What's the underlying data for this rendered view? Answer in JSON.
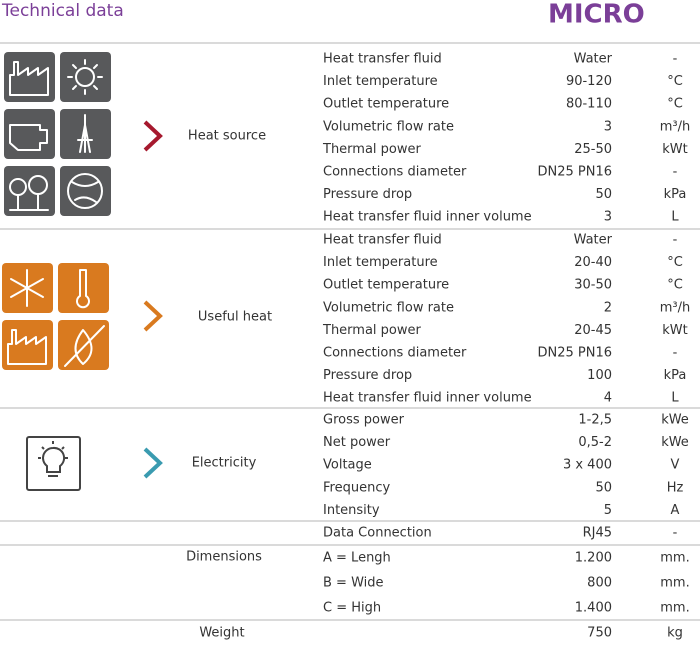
{
  "header": {
    "title": "Technical data",
    "model": "MICRO"
  },
  "sections": [
    {
      "label": "Heat source",
      "rows": [
        {
          "parameter": "Heat transfer fluid",
          "value": "Water",
          "unit": "-"
        },
        {
          "parameter": "Inlet temperature",
          "value": "90-120",
          "unit": "°C"
        },
        {
          "parameter": "Outlet temperature",
          "value": "80-110",
          "unit": "°C"
        },
        {
          "parameter": "Volumetric flow rate",
          "value": "3",
          "unit": "m³/h"
        },
        {
          "parameter": "Thermal power",
          "value": "25-50",
          "unit": "kWt"
        },
        {
          "parameter": "Connections diameter",
          "value": "DN25 PN16",
          "unit": "-"
        },
        {
          "parameter": "Pressure drop",
          "value": "50",
          "unit": "kPa"
        },
        {
          "parameter": "Heat transfer fluid inner volume",
          "value": "3",
          "unit": "L"
        }
      ]
    },
    {
      "label": "Useful heat",
      "rows": [
        {
          "parameter": "Heat transfer fluid",
          "value": "Water",
          "unit": "-"
        },
        {
          "parameter": "Inlet temperature",
          "value": "20-40",
          "unit": "°C"
        },
        {
          "parameter": "Outlet temperature",
          "value": "30-50",
          "unit": "°C"
        },
        {
          "parameter": "Volumetric flow rate",
          "value": "2",
          "unit": "m³/h"
        },
        {
          "parameter": "Thermal power",
          "value": "20-45",
          "unit": "kWt"
        },
        {
          "parameter": "Connections diameter",
          "value": "DN25 PN16",
          "unit": "-"
        },
        {
          "parameter": "Pressure drop",
          "value": "100",
          "unit": "kPa"
        },
        {
          "parameter": "Heat transfer fluid inner volume",
          "value": "4",
          "unit": "L"
        }
      ]
    },
    {
      "label": "Electricity",
      "rows": [
        {
          "parameter": "Gross power",
          "value": "1-2,5",
          "unit": "kWe"
        },
        {
          "parameter": "Net power",
          "value": "0,5-2",
          "unit": "kWe"
        },
        {
          "parameter": "Voltage",
          "value": "3 x 400",
          "unit": "V"
        },
        {
          "parameter": "Frequency",
          "value": "50",
          "unit": "Hz"
        },
        {
          "parameter": "Intensity",
          "value": "5",
          "unit": "A"
        }
      ]
    },
    {
      "rows": [
        {
          "parameter": "Data Connection",
          "value": "RJ45",
          "unit": "-"
        }
      ]
    },
    {
      "label": "Dimensions",
      "rows": [
        {
          "parameter": "A = Lengh",
          "value": "1.200",
          "unit": "mm."
        },
        {
          "parameter": "B = Wide",
          "value": "800",
          "unit": "mm."
        },
        {
          "parameter": "C = High",
          "value": "1.400",
          "unit": "mm."
        }
      ]
    },
    {
      "label": "Weight",
      "rows": [
        {
          "value": "750",
          "unit": "kg"
        }
      ]
    }
  ]
}
